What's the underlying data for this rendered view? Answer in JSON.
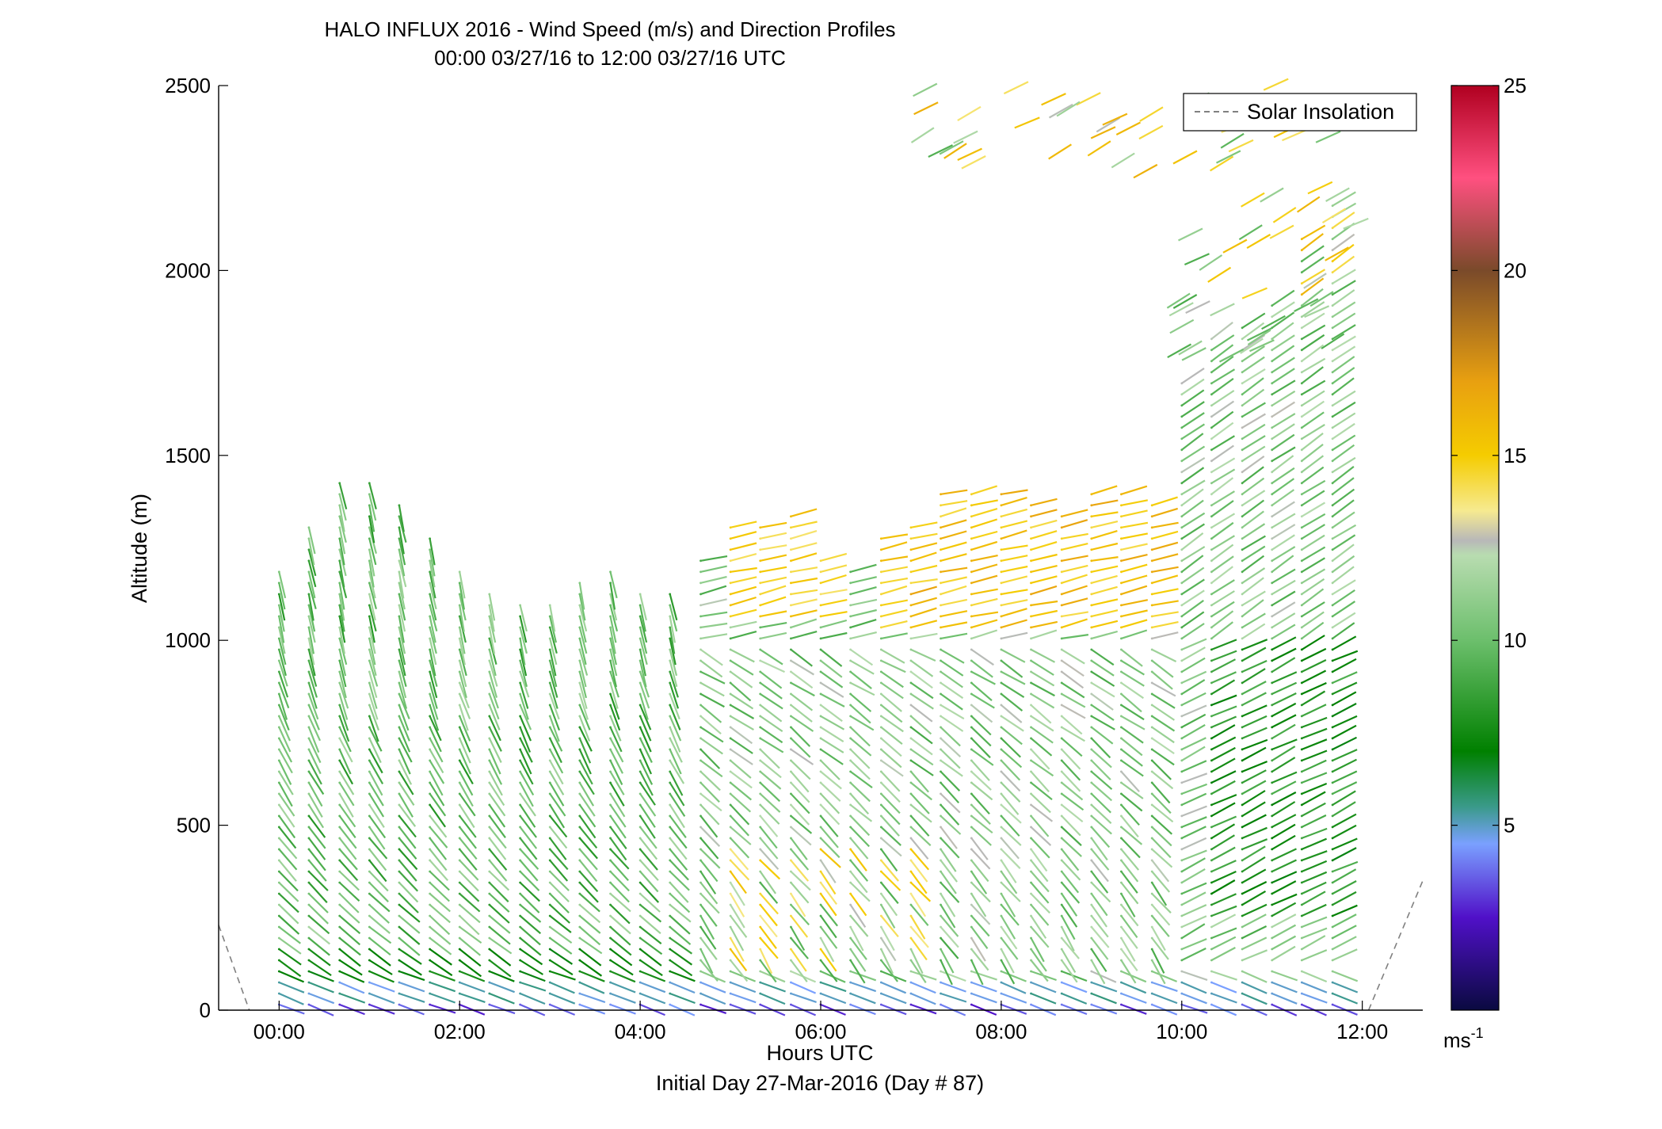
{
  "chart_data": {
    "type": "scatter",
    "title": "HALO INFLUX 2016 - Wind Speed (m/s) and Direction Profiles",
    "subtitle": "00:00 03/27/16 to 12:00 03/27/16  UTC",
    "xlabel": "Hours UTC",
    "xlabel2": "Initial Day 27-Mar-2016 (Day # 87)",
    "ylabel": "Altitude (m)",
    "xlim": [
      -0.67,
      12.67
    ],
    "ylim": [
      0,
      2500
    ],
    "x_ticks": [
      0,
      2,
      4,
      6,
      8,
      10,
      12
    ],
    "x_tick_labels": [
      "00:00",
      "02:00",
      "04:00",
      "06:00",
      "08:00",
      "10:00",
      "12:00"
    ],
    "y_ticks": [
      0,
      500,
      1000,
      1500,
      2000,
      2500
    ],
    "y_tick_labels": [
      "0",
      "500",
      "1000",
      "1500",
      "2000",
      "2500"
    ],
    "colorbar": {
      "min": 0,
      "max": 25,
      "ticks": [
        5,
        10,
        15,
        20,
        25
      ],
      "tick_labels": [
        "5",
        "10",
        "15",
        "20",
        "25"
      ],
      "unit_label": "ms",
      "unit_exponent": "-1",
      "stops": [
        {
          "v": 0,
          "c": "#0a0a40"
        },
        {
          "v": 2.5,
          "c": "#5010c8"
        },
        {
          "v": 4.5,
          "c": "#7aa0ff"
        },
        {
          "v": 5.5,
          "c": "#3a9a8a"
        },
        {
          "v": 7.0,
          "c": "#008000"
        },
        {
          "v": 10.0,
          "c": "#6cbf6c"
        },
        {
          "v": 12.3,
          "c": "#b8dcb0"
        },
        {
          "v": 12.7,
          "c": "#b8b8b8"
        },
        {
          "v": 13.5,
          "c": "#f6ea90"
        },
        {
          "v": 15.0,
          "c": "#f5cc00"
        },
        {
          "v": 17.0,
          "c": "#e8a010"
        },
        {
          "v": 20.0,
          "c": "#7a4a2a"
        },
        {
          "v": 22.5,
          "c": "#ff5080"
        },
        {
          "v": 25.0,
          "c": "#b00020"
        }
      ]
    },
    "legend": {
      "entries": [
        "Solar Insolation"
      ],
      "placement": "top-right"
    },
    "solar_insolation": {
      "style": "dashed",
      "color": "#808080",
      "x": [
        -0.67,
        -0.33,
        12.07,
        12.67
      ],
      "y": [
        230,
        0,
        0,
        350
      ]
    },
    "profile_times": [
      0.0,
      0.33,
      0.67,
      1.0,
      1.33,
      1.67,
      2.0,
      2.33,
      2.67,
      3.0,
      3.33,
      3.67,
      4.0,
      4.33,
      4.67,
      5.0,
      5.33,
      5.67,
      6.0,
      6.33,
      6.67,
      7.0,
      7.33,
      7.67,
      8.0,
      8.33,
      8.67,
      9.0,
      9.33,
      9.67,
      10.0,
      10.33,
      10.67,
      11.0,
      11.33,
      11.67
    ],
    "profile_top_m": [
      1210,
      1330,
      1450,
      1450,
      1380,
      1280,
      1200,
      1150,
      1120,
      1100,
      1180,
      1200,
      1150,
      1150,
      1220,
      1330,
      1330,
      1350,
      1230,
      1200,
      1300,
      1330,
      1400,
      1400,
      1400,
      1380,
      1360,
      1400,
      1400,
      1380,
      1700,
      1820,
      1850,
      1920,
      2100,
      2200
    ],
    "range_gate_m": 30,
    "notes": "Each profile is a column of wind vectors; vector orientation = wind direction, colour = wind speed (m/s). Values are estimated from colour."
  }
}
